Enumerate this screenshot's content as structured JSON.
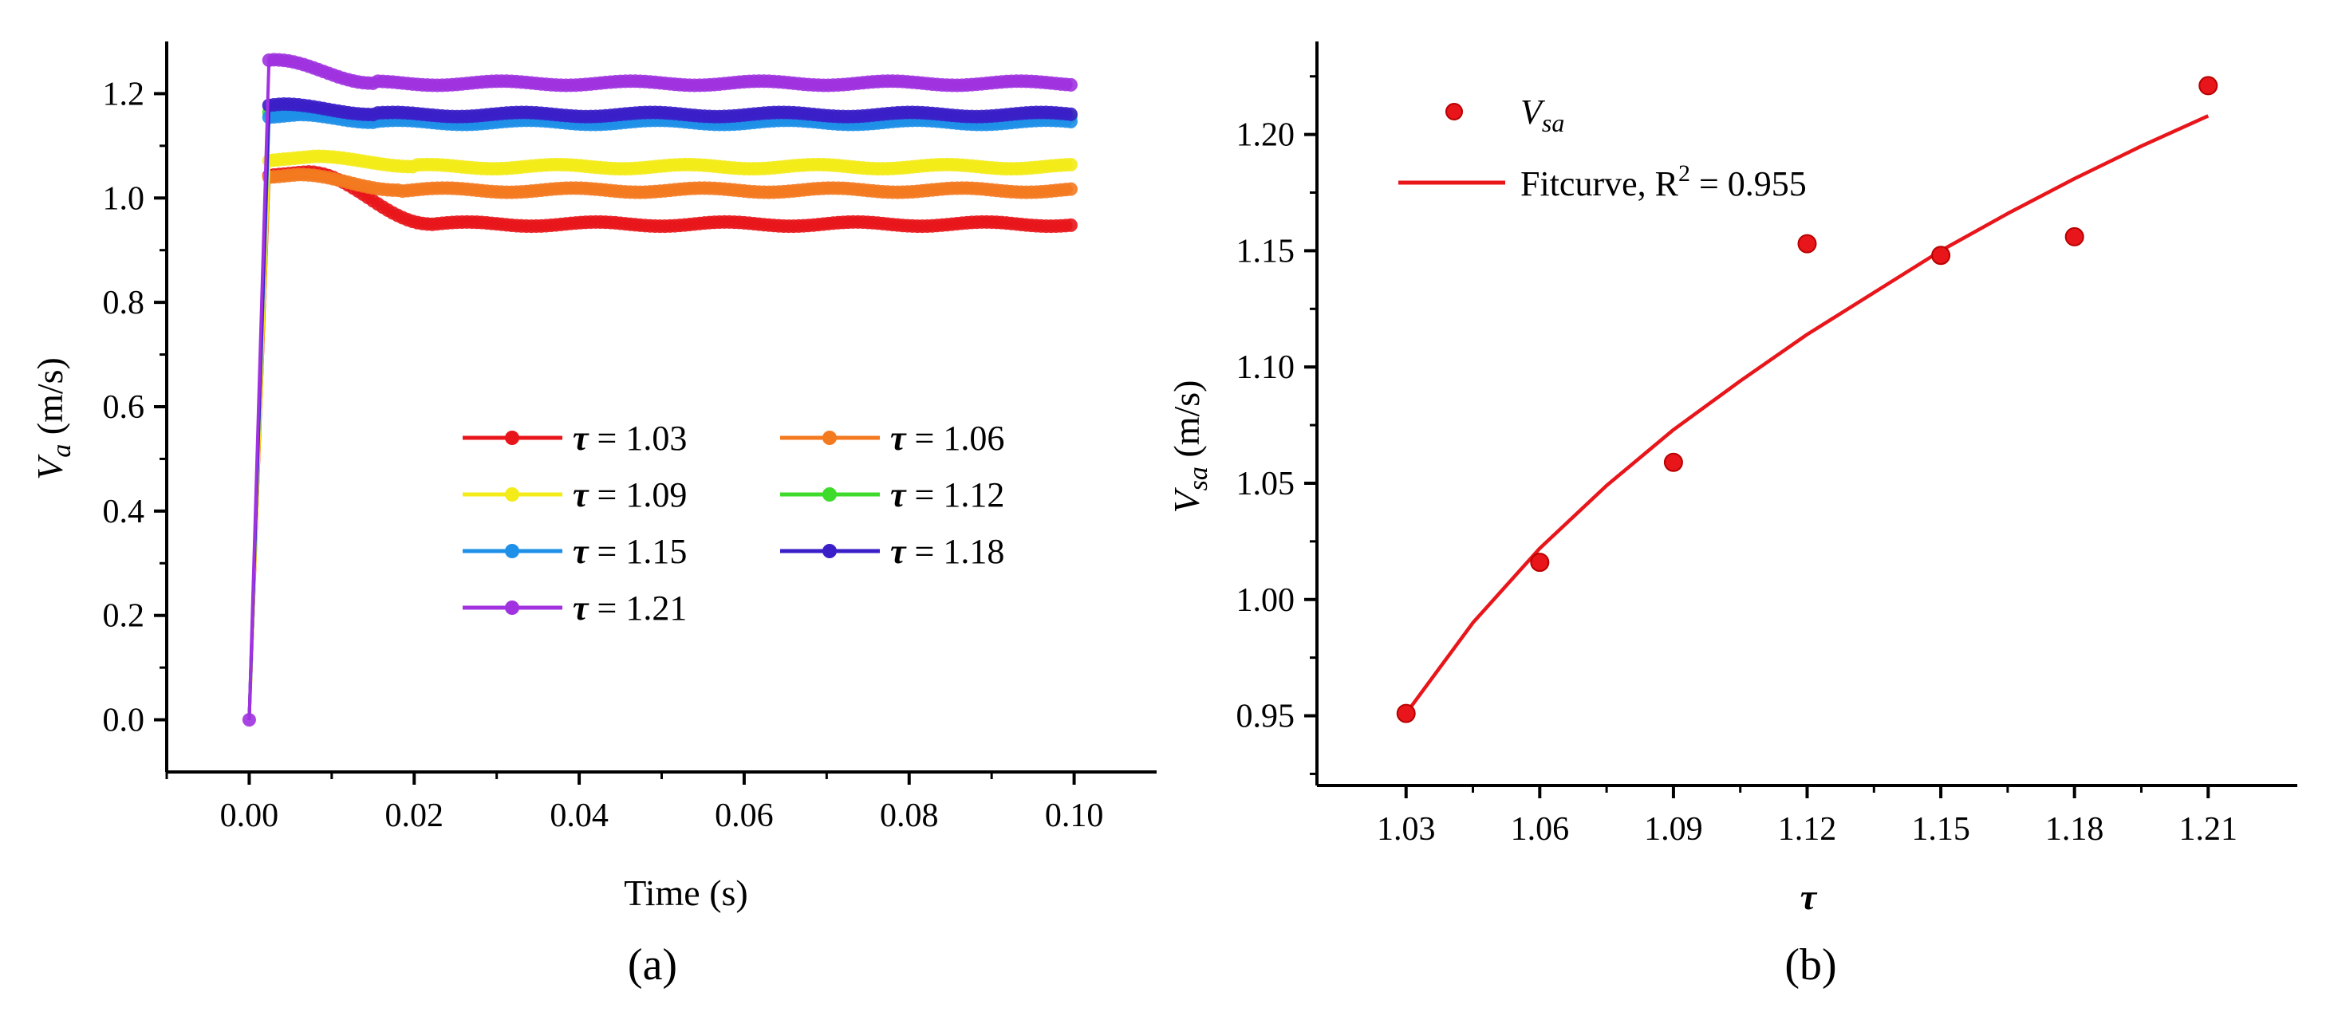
{
  "chart_data": [
    {
      "id": "a",
      "type": "line",
      "caption": "(a)",
      "xlabel": "Time (s)",
      "ylabel_main": "V",
      "ylabel_sub": "a",
      "ylabel_units": " (m/s)",
      "xlim": [
        -0.01,
        0.11
      ],
      "ylim": [
        -0.1,
        1.3
      ],
      "xticks": [
        0.0,
        0.02,
        0.04,
        0.06,
        0.08,
        0.1
      ],
      "xtick_labels": [
        "0.00",
        "0.02",
        "0.04",
        "0.06",
        "0.08",
        "0.10"
      ],
      "yticks": [
        0.0,
        0.2,
        0.4,
        0.6,
        0.8,
        1.0,
        1.2
      ],
      "ytick_labels": [
        "0.0",
        "0.2",
        "0.4",
        "0.6",
        "0.8",
        "1.0",
        "1.2"
      ],
      "legend_symbol": "τ",
      "series": [
        {
          "name": "τ = 1.03",
          "value_label": " = 1.03",
          "color": "#e8161b",
          "start": 0.0,
          "peak": 1.05,
          "peak_t": 0.007,
          "settle_t": 0.022,
          "steady": 0.95
        },
        {
          "name": "τ = 1.06",
          "value_label": " = 1.06",
          "color": "#f47a20",
          "start": 0.0,
          "peak": 1.045,
          "peak_t": 0.006,
          "settle_t": 0.018,
          "steady": 1.015
        },
        {
          "name": "τ = 1.09",
          "value_label": " = 1.09",
          "color": "#f3ec18",
          "start": 0.0,
          "peak": 1.08,
          "peak_t": 0.008,
          "settle_t": 0.02,
          "steady": 1.06
        },
        {
          "name": "τ = 1.12",
          "value_label": " = 1.12",
          "color": "#3fdb2c",
          "start": 0.0,
          "peak": 1.17,
          "peak_t": 0.006,
          "settle_t": 0.015,
          "steady": 1.155
        },
        {
          "name": "τ = 1.15",
          "value_label": " = 1.15",
          "color": "#1e90e8",
          "start": 0.0,
          "peak": 1.16,
          "peak_t": 0.006,
          "settle_t": 0.015,
          "steady": 1.145
        },
        {
          "name": "τ = 1.18",
          "value_label": " = 1.18",
          "color": "#3a1fc8",
          "start": 0.0,
          "peak": 1.18,
          "peak_t": 0.004,
          "settle_t": 0.015,
          "steady": 1.16
        },
        {
          "name": "τ = 1.21",
          "value_label": " = 1.21",
          "color": "#a032e0",
          "start": 0.0,
          "peak": 1.265,
          "peak_t": 0.003,
          "settle_t": 0.015,
          "steady": 1.22
        }
      ],
      "t_end": 0.1,
      "legend_position": "center-right"
    },
    {
      "id": "b",
      "type": "scatter",
      "caption": "(b)",
      "xlabel": "τ",
      "ylabel_main": "V",
      "ylabel_sub": "sa",
      "ylabel_units": " (m/s)",
      "xlim": [
        1.01,
        1.23
      ],
      "ylim": [
        0.92,
        1.24
      ],
      "xticks": [
        1.03,
        1.06,
        1.09,
        1.12,
        1.15,
        1.18,
        1.21
      ],
      "xtick_labels": [
        "1.03",
        "1.06",
        "1.09",
        "1.12",
        "1.15",
        "1.18",
        "1.21"
      ],
      "yticks": [
        0.95,
        1.0,
        1.05,
        1.1,
        1.15,
        1.2
      ],
      "ytick_labels": [
        "0.95",
        "1.00",
        "1.05",
        "1.10",
        "1.15",
        "1.20"
      ],
      "points": {
        "name": "V_sa",
        "legend_main": "V",
        "legend_sub": "sa",
        "color": "#e8161b",
        "x": [
          1.03,
          1.06,
          1.09,
          1.12,
          1.15,
          1.18,
          1.21
        ],
        "y": [
          0.951,
          1.016,
          1.059,
          1.153,
          1.148,
          1.156,
          1.221
        ]
      },
      "fit": {
        "name": "Fitcurve, R² = 0.955",
        "legend_prefix": "Fitcurve, R",
        "legend_sup": "2",
        "legend_suffix": " = 0.955",
        "color": "#e8161b",
        "r_squared": 0.955,
        "curve_x": [
          1.03,
          1.045,
          1.06,
          1.075,
          1.09,
          1.105,
          1.12,
          1.135,
          1.15,
          1.165,
          1.18,
          1.195,
          1.21
        ],
        "curve_y": [
          0.951,
          0.99,
          1.022,
          1.049,
          1.073,
          1.094,
          1.114,
          1.132,
          1.15,
          1.166,
          1.181,
          1.195,
          1.208
        ]
      },
      "legend_position": "top-left"
    }
  ]
}
